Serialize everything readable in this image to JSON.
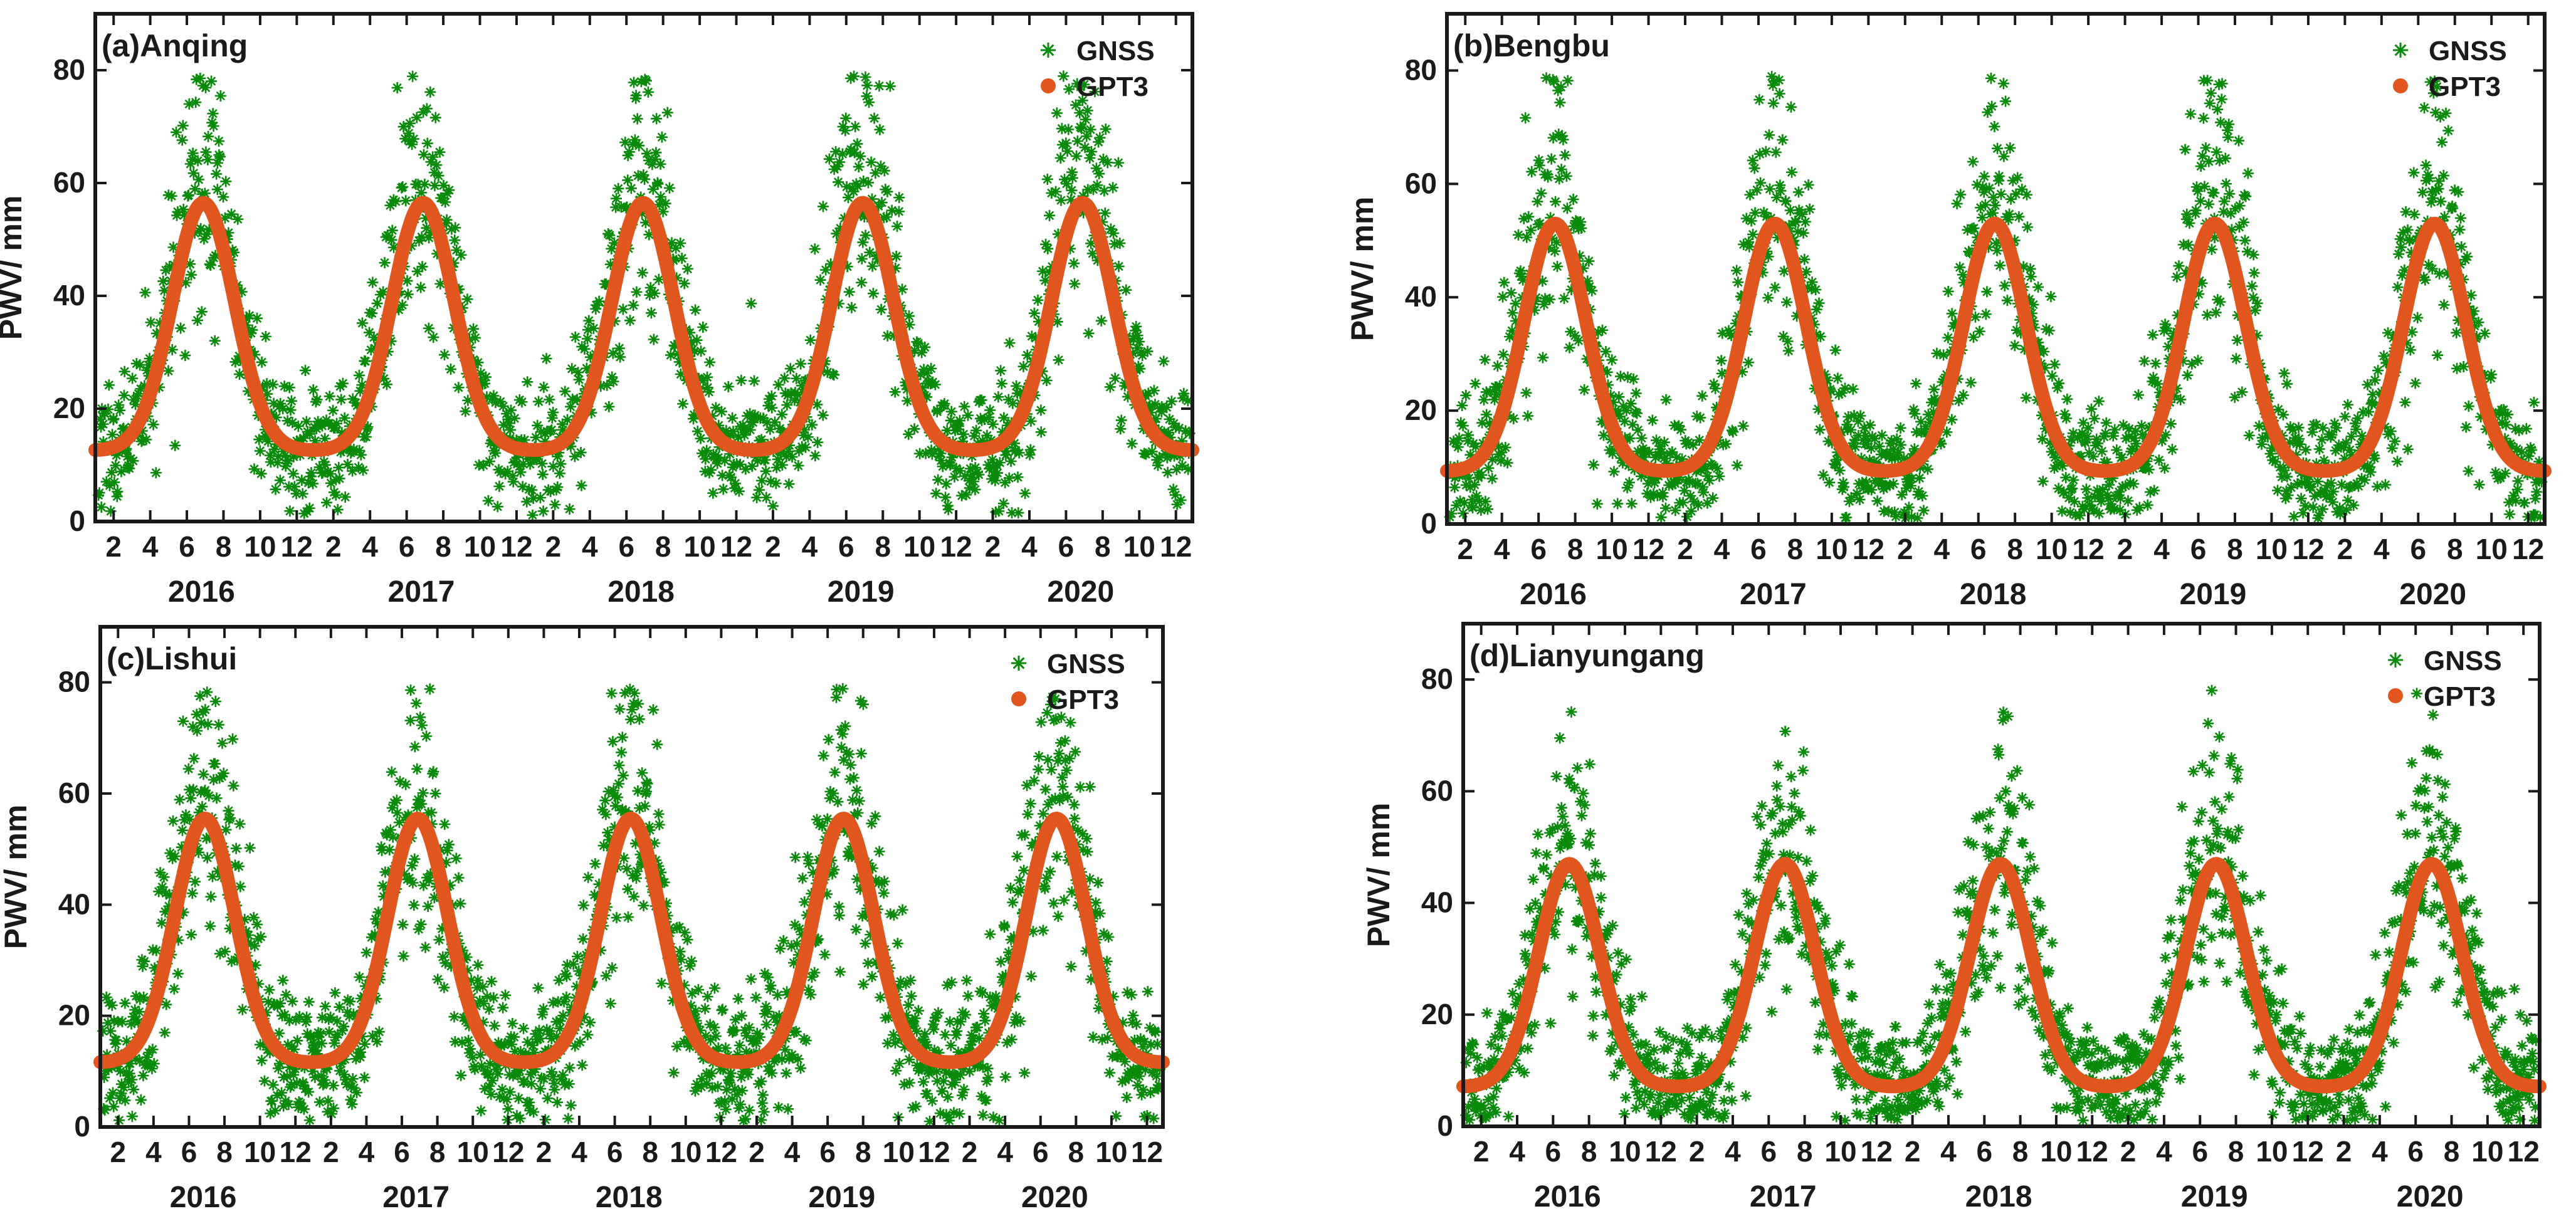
{
  "figure": {
    "description_free": true
  },
  "legend_labels": {
    "gnss": "GNSS",
    "gpt3": "GPT3"
  },
  "colors": {
    "gnss": "#0a8a0a",
    "gpt3": "#e0561e",
    "axis": "#1a1a1a"
  },
  "chart_data": [
    {
      "type": "scatter",
      "title": "(a)Anqing",
      "ylabel": "PWV/ mm",
      "ylim": [
        0,
        90
      ],
      "yticks": [
        0,
        20,
        40,
        60,
        80
      ],
      "xlim": [
        1,
        60.9
      ],
      "month_tick_labels": [
        "2",
        "4",
        "6",
        "8",
        "10",
        "12"
      ],
      "year_labels": [
        "2016",
        "2017",
        "2018",
        "2019",
        "2020"
      ],
      "series": [
        {
          "name": "GNSS",
          "marker": "asterisk",
          "base": 12.5,
          "peak": 56,
          "noise": 8,
          "seed": 11
        },
        {
          "name": "GPT3",
          "marker": "dot",
          "base": 12.5,
          "peak": 56.5
        }
      ]
    },
    {
      "type": "scatter",
      "title": "(b)Bengbu",
      "ylabel": "PWV/ mm",
      "ylim": [
        0,
        90
      ],
      "yticks": [
        0,
        20,
        40,
        60,
        80
      ],
      "xlim": [
        1,
        60.9
      ],
      "month_tick_labels": [
        "2",
        "4",
        "6",
        "8",
        "10",
        "12"
      ],
      "year_labels": [
        "2016",
        "2017",
        "2018",
        "2019",
        "2020"
      ],
      "series": [
        {
          "name": "GNSS",
          "marker": "asterisk",
          "base": 9,
          "peak": 53,
          "noise": 8,
          "seed": 23
        },
        {
          "name": "GPT3",
          "marker": "dot",
          "base": 9.2,
          "peak": 53
        }
      ]
    },
    {
      "type": "scatter",
      "title": "(c)Lishui",
      "ylabel": "PWV/ mm",
      "ylim": [
        0,
        90
      ],
      "yticks": [
        0,
        20,
        40,
        60,
        80
      ],
      "xlim": [
        1,
        60.9
      ],
      "month_tick_labels": [
        "2",
        "4",
        "6",
        "8",
        "10",
        "12"
      ],
      "year_labels": [
        "2016",
        "2017",
        "2018",
        "2019",
        "2020"
      ],
      "series": [
        {
          "name": "GNSS",
          "marker": "asterisk",
          "base": 11.5,
          "peak": 55,
          "noise": 8.5,
          "seed": 37
        },
        {
          "name": "GPT3",
          "marker": "dot",
          "base": 11.5,
          "peak": 55.5
        }
      ]
    },
    {
      "type": "scatter",
      "title": "(d)Lianyungang",
      "ylabel": "PWV/ mm",
      "ylim": [
        0,
        90
      ],
      "yticks": [
        0,
        20,
        40,
        60,
        80
      ],
      "xlim": [
        1,
        60.9
      ],
      "month_tick_labels": [
        "2",
        "4",
        "6",
        "8",
        "10",
        "12"
      ],
      "year_labels": [
        "2016",
        "2017",
        "2018",
        "2019",
        "2020"
      ],
      "series": [
        {
          "name": "GNSS",
          "marker": "asterisk",
          "base": 7,
          "peak": 46,
          "noise": 7.5,
          "seed": 53
        },
        {
          "name": "GPT3",
          "marker": "dot",
          "base": 7,
          "peak": 47
        }
      ]
    }
  ]
}
